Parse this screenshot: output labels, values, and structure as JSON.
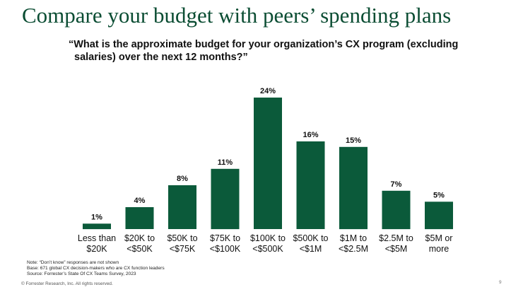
{
  "slide": {
    "title": "Compare your budget with peers’ spending plans",
    "page_number": "9"
  },
  "chart_data": {
    "type": "bar",
    "title_line1": "“What is the approximate budget for your organization’s CX program (excluding",
    "title_line2": "salaries) over the next 12 months?”",
    "categories": [
      [
        "Less than",
        "$20K"
      ],
      [
        "$20K to",
        "<$50K"
      ],
      [
        "$50K to",
        "<$75K"
      ],
      [
        "$75K to",
        "<$100K"
      ],
      [
        "$100K to",
        "<$500K"
      ],
      [
        "$500K to",
        "<$1M"
      ],
      [
        "$1M to",
        "<$2.5M"
      ],
      [
        "$2.5M to",
        "<$5M"
      ],
      [
        "$5M or",
        "more"
      ]
    ],
    "values": [
      1,
      4,
      8,
      11,
      24,
      16,
      15,
      7,
      5
    ],
    "value_labels": [
      "1%",
      "4%",
      "8%",
      "11%",
      "24%",
      "16%",
      "15%",
      "7%",
      "5%"
    ],
    "unit": "%",
    "ylim": [
      0,
      24
    ],
    "grid": false,
    "bar_color": "#0b5a3a"
  },
  "notes": {
    "line1": "Note: “Don’t know” responses are not shown",
    "line2": "Base: 671 global CX decision-makers who are CX function leaders",
    "line3": "Source: Forrester’s State Of CX Teams Survey, 2023"
  },
  "footer": {
    "copyright": "© Forrester Research, Inc. All rights reserved."
  },
  "colors": {
    "title": "#0b4d33",
    "bar": "#0b5a3a"
  }
}
